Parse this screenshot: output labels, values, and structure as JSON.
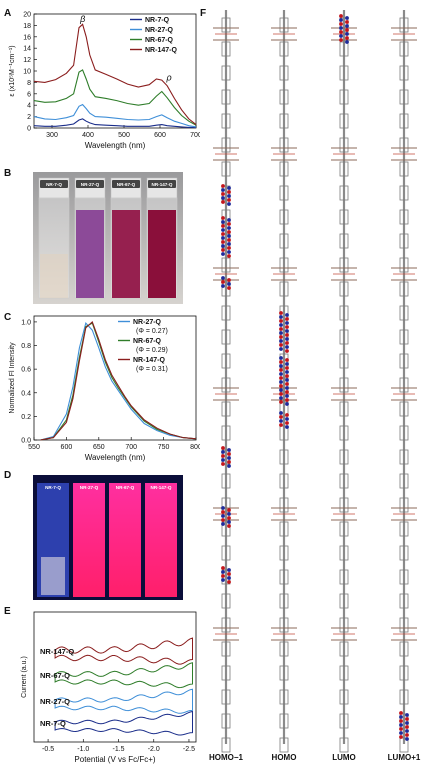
{
  "panels": {
    "a": "A",
    "b": "B",
    "c": "C",
    "d": "D",
    "e": "E",
    "f": "F"
  },
  "colors": {
    "nr7": "#1a2d8a",
    "nr27": "#3f8fd8",
    "nr67": "#2f7d2a",
    "nr147": "#8b1e1e"
  },
  "chart_data": [
    {
      "type": "line",
      "panel": "A",
      "xlabel": "Wavelength (nm)",
      "ylabel": "ε (x10⁵M⁻¹cm⁻¹)",
      "xlim": [
        250,
        700
      ],
      "ylim": [
        0,
        20
      ],
      "xticks": [
        300,
        400,
        500,
        600,
        700
      ],
      "yticks": [
        0,
        2,
        4,
        6,
        8,
        10,
        12,
        14,
        16,
        18,
        20
      ],
      "legend_position": "top-right",
      "annotations": [
        {
          "text": "β",
          "x": 378,
          "y": 18.6
        },
        {
          "text": "ρ",
          "x": 618,
          "y": 8.3
        }
      ],
      "series": [
        {
          "name": "NR-7-Q",
          "color_key": "nr7",
          "x": [
            250,
            280,
            310,
            340,
            360,
            375,
            385,
            395,
            405,
            420,
            450,
            480,
            510,
            540,
            570,
            590,
            605,
            620,
            640,
            660,
            680,
            700
          ],
          "y": [
            0.4,
            0.3,
            0.3,
            0.5,
            0.7,
            1.4,
            1.6,
            1.2,
            0.9,
            0.6,
            0.5,
            0.4,
            0.3,
            0.3,
            0.3,
            0.5,
            0.6,
            0.4,
            0.3,
            0.2,
            0.1,
            0.1
          ]
        },
        {
          "name": "NR-27-Q",
          "color_key": "nr27",
          "x": [
            250,
            280,
            310,
            340,
            360,
            375,
            385,
            395,
            405,
            420,
            450,
            480,
            510,
            540,
            570,
            590,
            605,
            620,
            640,
            660,
            680,
            700
          ],
          "y": [
            2.0,
            1.6,
            1.5,
            1.8,
            2.2,
            3.8,
            4.1,
            3.4,
            2.6,
            2.0,
            1.9,
            1.7,
            1.5,
            1.4,
            1.5,
            2.0,
            2.3,
            1.8,
            1.2,
            0.8,
            0.4,
            0.2
          ]
        },
        {
          "name": "NR-67-Q",
          "color_key": "nr67",
          "x": [
            250,
            280,
            310,
            340,
            360,
            375,
            385,
            395,
            405,
            420,
            450,
            480,
            510,
            540,
            570,
            590,
            605,
            620,
            640,
            660,
            680,
            700
          ],
          "y": [
            4.8,
            4.5,
            4.6,
            5.2,
            6.0,
            9.8,
            10.2,
            8.6,
            6.8,
            5.5,
            5.2,
            4.8,
            4.3,
            4.0,
            4.3,
            5.6,
            6.4,
            5.3,
            3.6,
            2.2,
            1.2,
            0.5
          ]
        },
        {
          "name": "NR-147-Q",
          "color_key": "nr147",
          "x": [
            250,
            280,
            310,
            340,
            360,
            375,
            385,
            395,
            405,
            420,
            450,
            480,
            510,
            540,
            570,
            590,
            605,
            620,
            640,
            660,
            680,
            700
          ],
          "y": [
            8.2,
            8.0,
            8.5,
            9.6,
            11.0,
            17.6,
            18.2,
            16.0,
            12.8,
            10.2,
            9.4,
            8.6,
            7.7,
            7.2,
            7.6,
            8.6,
            8.4,
            7.4,
            5.2,
            3.2,
            1.6,
            0.6
          ]
        }
      ]
    },
    {
      "type": "line",
      "panel": "C",
      "xlabel": "Wavelength (nm)",
      "ylabel": "Normalized Fl Intensity",
      "xlim": [
        550,
        800
      ],
      "ylim": [
        0,
        1.05
      ],
      "xticks": [
        550,
        600,
        650,
        700,
        750,
        800
      ],
      "yticks": [
        0.0,
        0.2,
        0.4,
        0.6,
        0.8,
        1.0
      ],
      "legend_position": "top-right",
      "series": [
        {
          "name": "NR-27-Q",
          "sub": "(Φ = 0.27)",
          "color_key": "nr27",
          "x": [
            560,
            580,
            600,
            610,
            620,
            630,
            640,
            650,
            660,
            670,
            680,
            690,
            700,
            720,
            740,
            760,
            780,
            800
          ],
          "y": [
            0.0,
            0.03,
            0.22,
            0.45,
            0.78,
            0.99,
            0.93,
            0.78,
            0.62,
            0.5,
            0.42,
            0.34,
            0.26,
            0.14,
            0.08,
            0.04,
            0.02,
            0.01
          ]
        },
        {
          "name": "NR-67-Q",
          "sub": "(Φ = 0.29)",
          "color_key": "nr67",
          "x": [
            560,
            580,
            600,
            610,
            620,
            630,
            640,
            650,
            660,
            670,
            680,
            690,
            700,
            720,
            740,
            760,
            780,
            800
          ],
          "y": [
            0.0,
            0.02,
            0.17,
            0.38,
            0.7,
            0.96,
            0.99,
            0.83,
            0.66,
            0.53,
            0.44,
            0.36,
            0.28,
            0.16,
            0.09,
            0.05,
            0.02,
            0.01
          ]
        },
        {
          "name": "NR-147-Q",
          "sub": "(Φ = 0.31)",
          "color_key": "nr147",
          "x": [
            560,
            580,
            600,
            610,
            620,
            630,
            640,
            650,
            660,
            670,
            680,
            690,
            700,
            720,
            740,
            760,
            780,
            800
          ],
          "y": [
            0.0,
            0.02,
            0.15,
            0.35,
            0.67,
            0.95,
            1.0,
            0.85,
            0.68,
            0.55,
            0.46,
            0.37,
            0.29,
            0.17,
            0.1,
            0.05,
            0.02,
            0.01
          ]
        }
      ]
    },
    {
      "type": "line",
      "panel": "E",
      "xlabel": "Potential (V vs Fc/Fc+)",
      "ylabel": "Current (a.u.)",
      "xlim": [
        -0.3,
        -2.6
      ],
      "xticks": [
        -0.5,
        -1.0,
        -1.5,
        -2.0,
        -2.5
      ],
      "tick_labels": [
        "-0.5",
        "-1.0",
        "-1.5",
        "-2.0",
        "-2.5"
      ],
      "series_labels": [
        "NR-147-Q",
        "NR-67-Q",
        "NR-27-Q",
        "NR-7-Q"
      ]
    }
  ],
  "vials_b": [
    "NR-7-Q",
    "NR-27-Q",
    "NR-67-Q",
    "NR-147-Q"
  ],
  "vials_d": [
    "NR-7-Q",
    "NR-27-Q",
    "NR-67-Q",
    "NR-147-Q"
  ],
  "orbitals": [
    "HOMO−1",
    "HOMO",
    "LUMO",
    "LUMO+1"
  ]
}
